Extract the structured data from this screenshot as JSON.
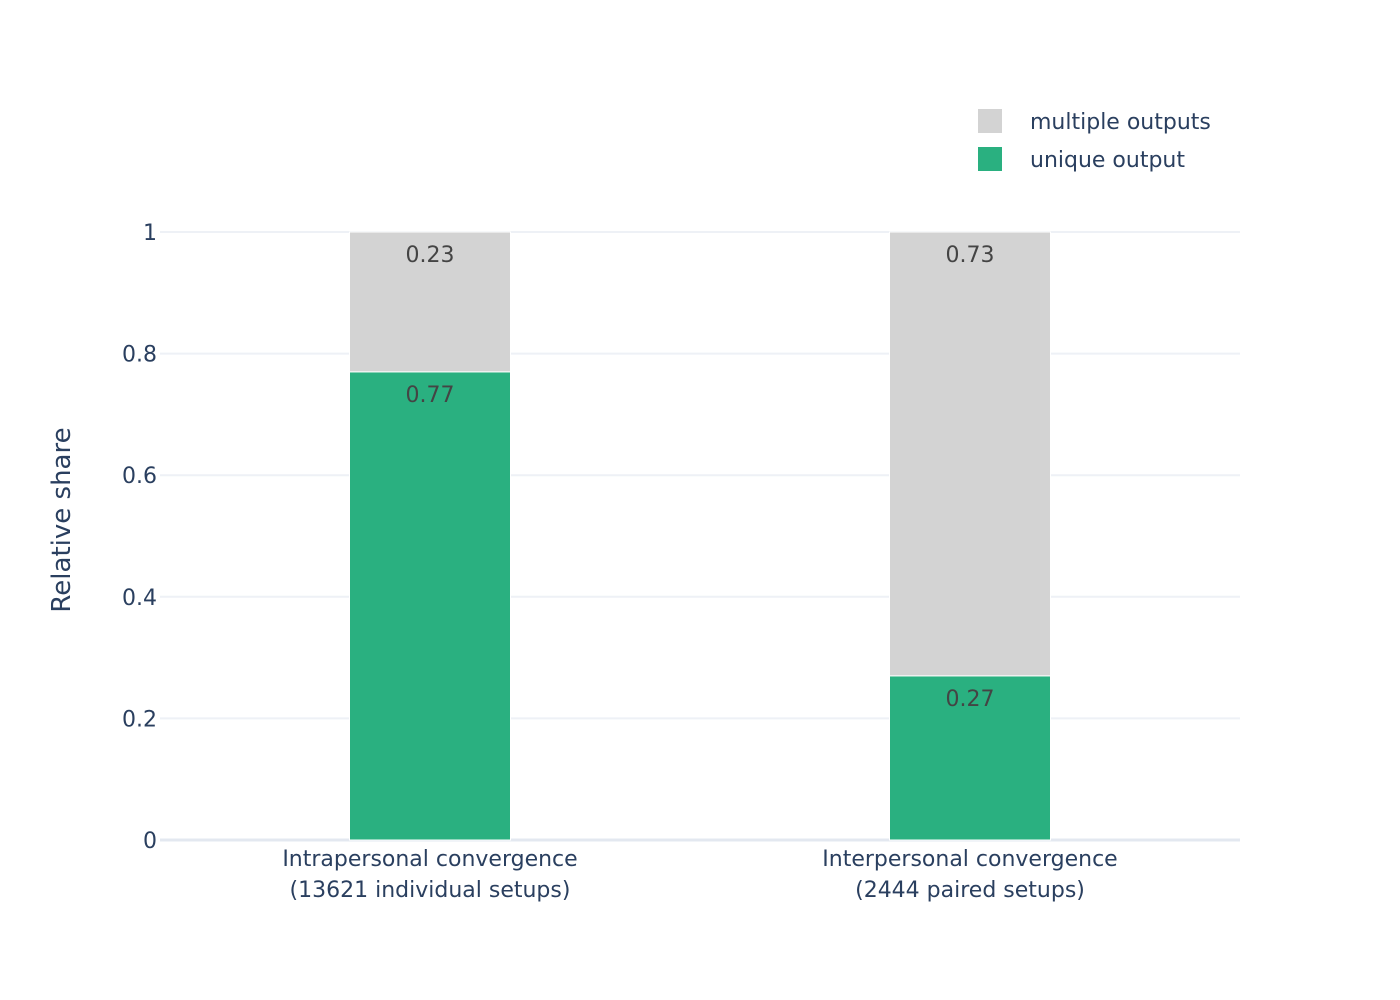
{
  "chart_data": {
    "type": "bar",
    "stacked": true,
    "categories": [
      [
        "Intrapersonal convergence",
        "(13621 individual setups)"
      ],
      [
        "Interpersonal convergence",
        "(2444 paired setups)"
      ]
    ],
    "series": [
      {
        "name": "unique output",
        "values": [
          0.77,
          0.27
        ],
        "labels": [
          "0.77",
          "0.27"
        ],
        "color": "#2ab080"
      },
      {
        "name": "multiple outputs",
        "values": [
          0.23,
          0.73
        ],
        "labels": [
          "0.23",
          "0.73"
        ],
        "color": "#d3d3d3"
      }
    ],
    "legend_order": [
      1,
      0
    ],
    "ylabel": "Relative share",
    "ylim": [
      0,
      1
    ],
    "yticks": [
      0,
      0.2,
      0.4,
      0.6,
      0.8,
      1
    ],
    "ytick_labels": [
      "0",
      "0.2",
      "0.4",
      "0.6",
      "0.8",
      "1"
    ],
    "grid": true,
    "legend_position": "top-right"
  }
}
